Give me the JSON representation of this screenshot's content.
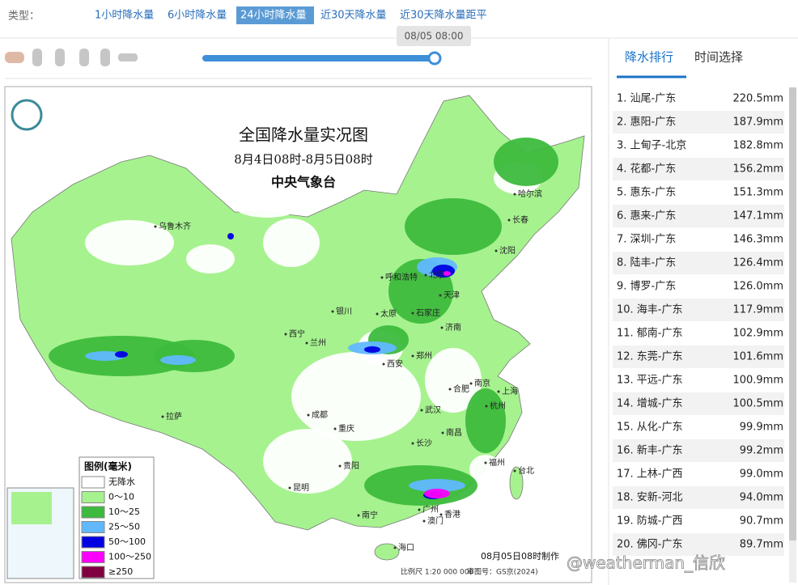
{
  "toolbar": {
    "type_label": "类型：",
    "tabs": [
      "1小时降水量",
      "6小时降水量",
      "24小时降水量",
      "近30天降水量",
      "近30天降水量距平"
    ],
    "active_tab": 2
  },
  "slider": {
    "time": "08/05 08:00"
  },
  "map": {
    "title": "全国降水量实况图",
    "period": "8月4日08时-8月5日08时",
    "agency": "中央气象台",
    "legend": {
      "title": "图例(毫米)",
      "items": [
        {
          "label": "无降水",
          "color": "#ffffff"
        },
        {
          "label": "0～10",
          "color": "#a6f28f"
        },
        {
          "label": "10～25",
          "color": "#3dba3d"
        },
        {
          "label": "25～50",
          "color": "#61b8ff"
        },
        {
          "label": "50～100",
          "color": "#0000e1"
        },
        {
          "label": "100～250",
          "color": "#fa00fa"
        },
        {
          "label": "≥250",
          "color": "#800040"
        }
      ]
    },
    "cities": [
      "乌鲁木齐",
      "哈尔滨",
      "长春",
      "沈阳",
      "呼和浩特",
      "北京",
      "天津",
      "石家庄",
      "太原",
      "银川",
      "西宁",
      "兰州",
      "济南",
      "郑州",
      "西安",
      "合肥",
      "南京",
      "上海",
      "杭州",
      "武汉",
      "成都",
      "重庆",
      "拉萨",
      "长沙",
      "南昌",
      "福州",
      "台北",
      "贵阳",
      "昆明",
      "南宁",
      "广州",
      "香港",
      "澳门",
      "海口"
    ],
    "made": "08月05日08时制作",
    "scale": "比例尺 1:20 000 000",
    "approval": "审图号：GS京(2024)"
  },
  "panel": {
    "tabs": [
      "降水排行",
      "时间选择"
    ],
    "active_tab": 0,
    "rows": [
      [
        "1. 汕尾-广东",
        "220.5mm"
      ],
      [
        "2. 惠阳-广东",
        "187.9mm"
      ],
      [
        "3. 上甸子-北京",
        "182.8mm"
      ],
      [
        "4. 花都-广东",
        "156.2mm"
      ],
      [
        "5. 惠东-广东",
        "151.3mm"
      ],
      [
        "6. 惠来-广东",
        "147.1mm"
      ],
      [
        "7. 深圳-广东",
        "146.3mm"
      ],
      [
        "8. 陆丰-广东",
        "126.4mm"
      ],
      [
        "9. 博罗-广东",
        "126.0mm"
      ],
      [
        "10. 海丰-广东",
        "117.9mm"
      ],
      [
        "11. 郁南-广东",
        "102.9mm"
      ],
      [
        "12. 东莞-广东",
        "101.6mm"
      ],
      [
        "13. 平远-广东",
        "100.9mm"
      ],
      [
        "14. 增城-广东",
        "100.5mm"
      ],
      [
        "15. 从化-广东",
        "99.9mm"
      ],
      [
        "16. 新丰-广东",
        "99.2mm"
      ],
      [
        "17. 上林-广西",
        "99.0mm"
      ],
      [
        "18. 安新-河北",
        "94.0mm"
      ],
      [
        "19. 防城-广西",
        "90.7mm"
      ],
      [
        "20. 佛冈-广东",
        "89.7mm"
      ]
    ]
  },
  "watermark": "@weatherman_信欣"
}
